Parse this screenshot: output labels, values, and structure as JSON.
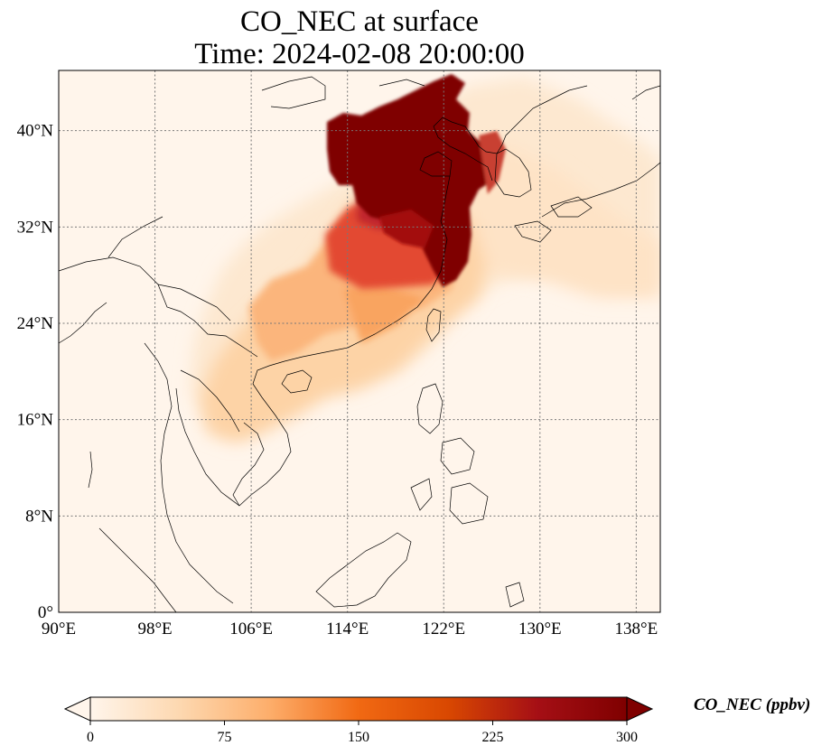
{
  "title": {
    "line1": "CO_NEC at surface",
    "line2": "Time: 2024-02-08 20:00:00"
  },
  "map": {
    "region": "East and Southeast Asia",
    "lon_range": [
      90,
      140
    ],
    "lat_range": [
      0,
      45
    ],
    "lon_ticks": [
      "90°E",
      "98°E",
      "106°E",
      "114°E",
      "122°E",
      "130°E",
      "138°E"
    ],
    "lat_ticks": [
      "0°",
      "8°N",
      "16°N",
      "24°N",
      "32°N",
      "40°N"
    ],
    "gridlines": true,
    "background_color": "#fff5eb"
  },
  "colorbar": {
    "label": "CO_NEC (ppbv)",
    "ticks": [
      "0",
      "75",
      "150",
      "225",
      "300"
    ],
    "min": 0,
    "max": 300,
    "colormap": [
      "#fff5eb",
      "#fdd8b0",
      "#fdae6b",
      "#f16913",
      "#d94801",
      "#a50f15",
      "#7f0000"
    ],
    "extend": "both"
  }
}
